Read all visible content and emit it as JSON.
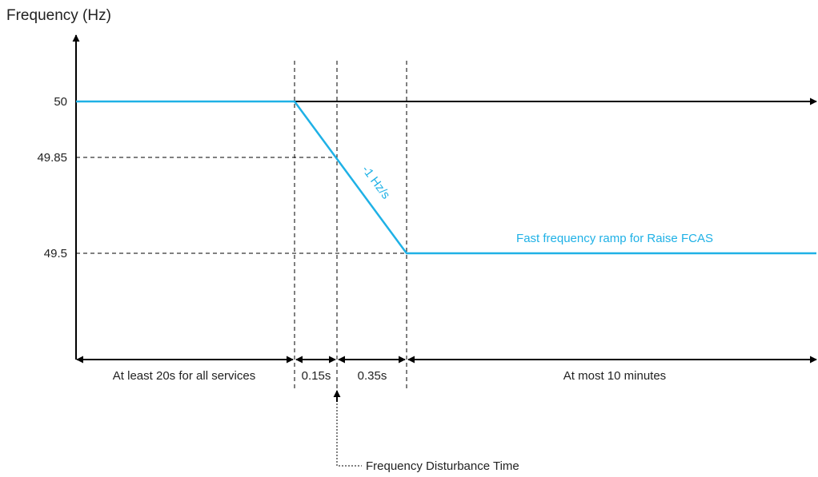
{
  "axis": {
    "y_title": "Frequency (Hz)",
    "ticks": [
      "50",
      "49.85",
      "49.5"
    ]
  },
  "profile": {
    "slope_label": "-1 Hz/s",
    "ramp_label": "Fast frequency ramp for Raise FCAS",
    "frequencies_hz": [
      50,
      49.85,
      49.5
    ],
    "slope_hz_per_s": -1
  },
  "segments": [
    {
      "label": "At least 20s for all services"
    },
    {
      "label": "0.15s"
    },
    {
      "label": "0.35s"
    },
    {
      "label": "At most 10 minutes"
    }
  ],
  "annotation": {
    "label": "Frequency Disturbance Time"
  },
  "colors": {
    "profile_line": "#1fb1e6",
    "axis": "#000000",
    "text": "#222222"
  }
}
